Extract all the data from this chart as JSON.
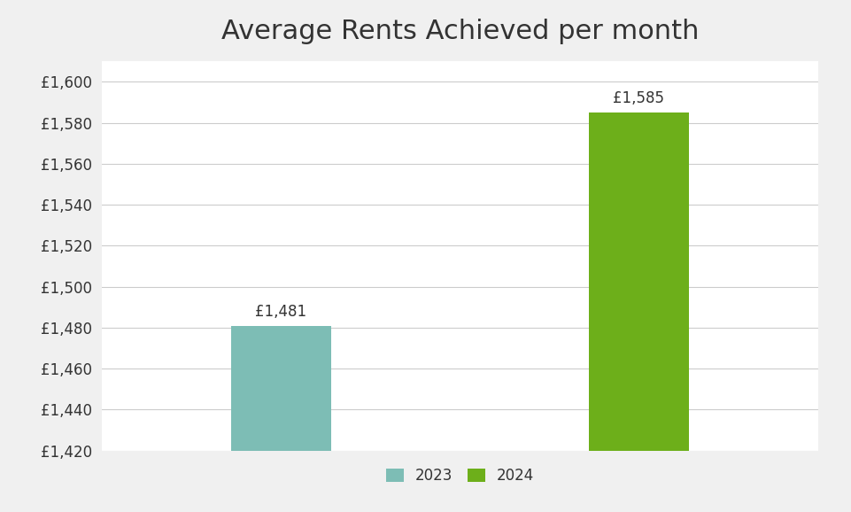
{
  "title": "Average Rents Achieved per month",
  "categories": [
    "2023",
    "2024"
  ],
  "values": [
    1481,
    1585
  ],
  "bar_colors": [
    "#7DBDB5",
    "#6DAF1A"
  ],
  "bar_labels": [
    "£1,481",
    "£1,585"
  ],
  "ylim": [
    1420,
    1610
  ],
  "yticks": [
    1420,
    1440,
    1460,
    1480,
    1500,
    1520,
    1540,
    1560,
    1580,
    1600
  ],
  "legend_labels": [
    "2023",
    "2024"
  ],
  "outer_background": "#f0f0f0",
  "inner_background": "#ffffff",
  "grid_color": "#cccccc",
  "title_fontsize": 22,
  "tick_fontsize": 12,
  "label_fontsize": 12,
  "bar_width": 0.28
}
